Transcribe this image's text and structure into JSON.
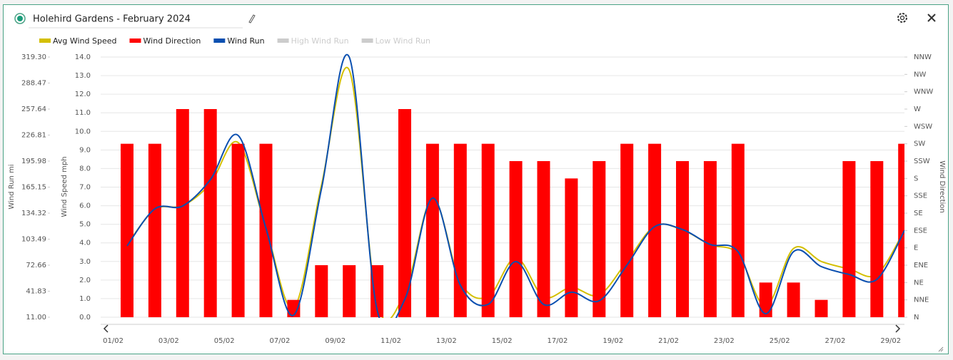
{
  "chart_data": {
    "type": "bar-line",
    "title": "Holehird Gardens - February 2024",
    "categories": [
      "01/02",
      null,
      "03/02",
      null,
      "05/02",
      null,
      "07/02",
      null,
      "09/02",
      null,
      "11/02",
      null,
      "13/02",
      null,
      "15/02",
      null,
      "17/02",
      null,
      "19/02",
      null,
      "21/02",
      null,
      "23/02",
      null,
      "25/02",
      null,
      "27/02",
      null,
      "29/02"
    ],
    "series": [
      {
        "name": "Avg Wind Speed",
        "color": "#d4bf00",
        "type": "spline",
        "axis": "y",
        "values": [
          3.9,
          5.8,
          6.0,
          7.2,
          9.4,
          4.8,
          0.5,
          7.1,
          13.3,
          0.8,
          1.3,
          6.4,
          1.9,
          1.1,
          3.2,
          1.1,
          1.6,
          1.2,
          3.0,
          4.9,
          4.7,
          3.9,
          3.4,
          0.6,
          3.7,
          3.0,
          2.6,
          2.3,
          4.7
        ]
      },
      {
        "name": "Wind Direction",
        "color": "#ff0000",
        "type": "bar",
        "axis": "y2",
        "values": [
          225,
          225,
          270,
          270,
          225,
          225,
          22.5,
          67.5,
          67.5,
          67.5,
          270,
          225,
          225,
          225,
          202.5,
          202.5,
          180,
          202.5,
          225,
          225,
          202.5,
          202.5,
          225,
          45,
          45,
          22.5,
          202.5,
          202.5,
          225
        ]
      },
      {
        "name": "Wind Run",
        "color": "#0a4fb0",
        "type": "spline",
        "axis": "y3",
        "values": [
          95.5,
          139.4,
          142.8,
          174.0,
          226.4,
          116.6,
          13.5,
          163.0,
          319.3,
          20.3,
          32.1,
          152.1,
          49.0,
          26.2,
          76.9,
          26.2,
          40.6,
          30.4,
          72.7,
          118.3,
          114.9,
          97.2,
          88.7,
          15.2,
          88.7,
          71.0,
          61.7,
          55.8,
          114.0
        ]
      },
      {
        "name": "High Wind Run",
        "color": "#cccccc",
        "hidden": true
      },
      {
        "name": "Low Wind Run",
        "color": "#cccccc",
        "hidden": true
      }
    ],
    "ylabel": "Wind Speed mph",
    "ylim": [
      0,
      14
    ],
    "yticks": [
      {
        "value": 0,
        "label": "0.0"
      },
      {
        "value": 1,
        "label": "1.0"
      },
      {
        "value": 2,
        "label": "2.0"
      },
      {
        "value": 3,
        "label": "3.0"
      },
      {
        "value": 4,
        "label": "4.0"
      },
      {
        "value": 5,
        "label": "5.0"
      },
      {
        "value": 6,
        "label": "6.0"
      },
      {
        "value": 7,
        "label": "7.0"
      },
      {
        "value": 8,
        "label": "8.0"
      },
      {
        "value": 9,
        "label": "9.0"
      },
      {
        "value": 10,
        "label": "10.0"
      },
      {
        "value": 11,
        "label": "11.0"
      },
      {
        "value": 12,
        "label": "12.0"
      },
      {
        "value": 13,
        "label": "13.0"
      },
      {
        "value": 14,
        "label": "14.0"
      }
    ],
    "y2label": "Wind Direction",
    "y2lim": [
      0,
      337.5
    ],
    "y2ticks": [
      {
        "value": 0,
        "label": "N"
      },
      {
        "value": 22.5,
        "label": "NNE"
      },
      {
        "value": 45,
        "label": "NE"
      },
      {
        "value": 67.5,
        "label": "ENE"
      },
      {
        "value": 90,
        "label": "E"
      },
      {
        "value": 112.5,
        "label": "ESE"
      },
      {
        "value": 135,
        "label": "SE"
      },
      {
        "value": 157.5,
        "label": "SSE"
      },
      {
        "value": 180,
        "label": "S"
      },
      {
        "value": 202.5,
        "label": "SSW"
      },
      {
        "value": 225,
        "label": "SW"
      },
      {
        "value": 247.5,
        "label": "WSW"
      },
      {
        "value": 270,
        "label": "W"
      },
      {
        "value": 292.5,
        "label": "WNW"
      },
      {
        "value": 315,
        "label": "NW"
      },
      {
        "value": 337.5,
        "label": "NNW"
      }
    ],
    "y3label": "Wind Run mi",
    "y3lim": [
      11,
      319.3
    ],
    "y3ticks": [
      {
        "value": 11,
        "label": "11.00"
      },
      41.83,
      72.66,
      103.49,
      134.32,
      165.15,
      195.98,
      226.81,
      257.64,
      288.47,
      {
        "value": 319.3,
        "label": "319.30"
      }
    ],
    "grid": true
  }
}
